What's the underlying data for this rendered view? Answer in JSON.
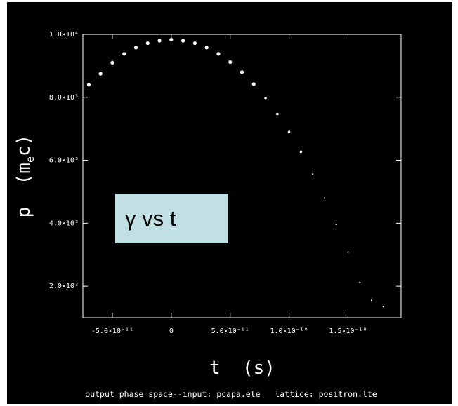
{
  "caption": "output phase space--input: pcapa.ele   lattice: positron.lte",
  "annotation": "γ vs t",
  "colors": {
    "background": "#000000",
    "foreground": "#ffffff",
    "annotation_bg": "#c0e0e4"
  },
  "chart_data": {
    "type": "scatter",
    "title": "",
    "xlabel": "t  (s)",
    "ylabel": "p  (m",
    "ylabel_sub": "e",
    "ylabel_end": "c)",
    "xlim": [
      -7.5e-11,
      1.95e-10
    ],
    "ylim": [
      1000,
      10000
    ],
    "xticks": [
      {
        "value": -5e-11,
        "label": "-5.0×10⁻¹¹"
      },
      {
        "value": 0,
        "label": "0"
      },
      {
        "value": 5e-11,
        "label": "5.0×10⁻¹¹"
      },
      {
        "value": 1e-10,
        "label": "1.0×10⁻¹⁰"
      },
      {
        "value": 1.5e-10,
        "label": "1.5×10⁻¹⁰"
      }
    ],
    "yticks": [
      {
        "value": 2000,
        "label": "2.0×10³"
      },
      {
        "value": 4000,
        "label": "4.0×10³"
      },
      {
        "value": 6000,
        "label": "6.0×10³"
      },
      {
        "value": 8000,
        "label": "8.0×10³"
      },
      {
        "value": 10000,
        "label": "1.0×10⁴"
      }
    ],
    "grid": false,
    "series": [
      {
        "points": [
          [
            -7e-11,
            8400
          ],
          [
            -6e-11,
            8750
          ],
          [
            -5e-11,
            9100
          ],
          [
            -4e-11,
            9380
          ],
          [
            -3e-11,
            9580
          ],
          [
            -2e-11,
            9720
          ],
          [
            -1e-11,
            9800
          ],
          [
            0,
            9830
          ],
          [
            1e-11,
            9800
          ],
          [
            2e-11,
            9720
          ],
          [
            3e-11,
            9580
          ],
          [
            4e-11,
            9380
          ],
          [
            5e-11,
            9120
          ],
          [
            6e-11,
            8800
          ],
          [
            7e-11,
            8420
          ],
          [
            8e-11,
            7980
          ],
          [
            9e-11,
            7470
          ],
          [
            1e-10,
            6900
          ],
          [
            1.1e-10,
            6270
          ],
          [
            1.2e-10,
            5560
          ],
          [
            1.3e-10,
            4800
          ],
          [
            1.4e-10,
            3960
          ],
          [
            1.5e-10,
            3080
          ],
          [
            1.6e-10,
            2120
          ],
          [
            1.7e-10,
            1550
          ],
          [
            1.8e-10,
            1350
          ]
        ]
      }
    ]
  }
}
